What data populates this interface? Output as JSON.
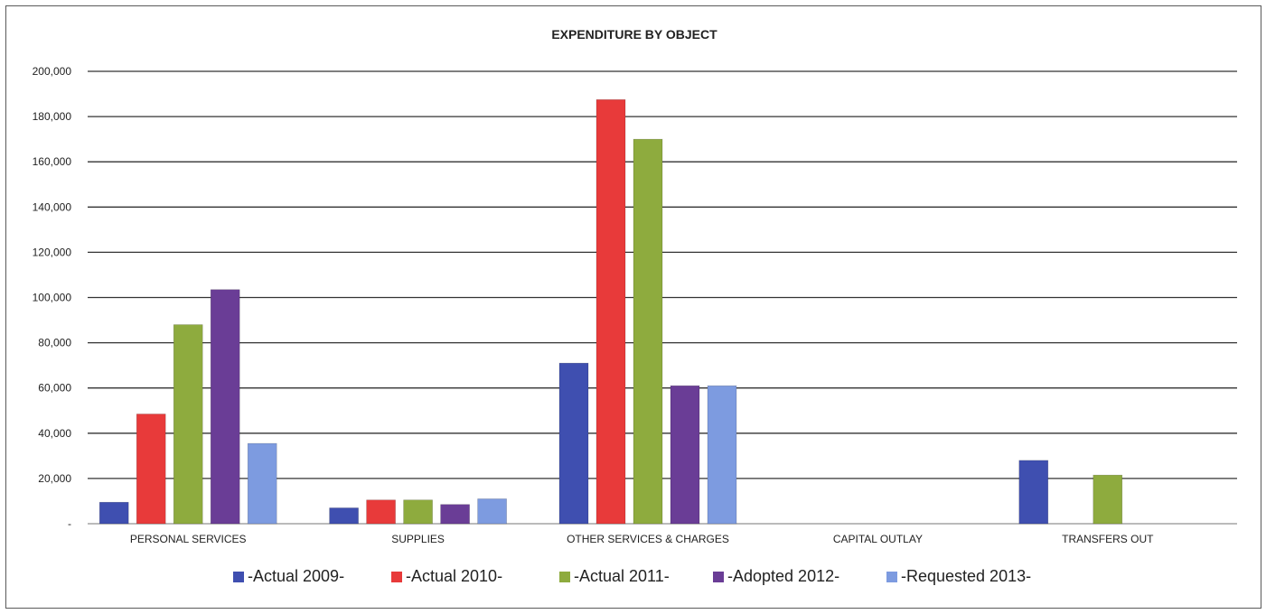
{
  "chart_data": {
    "type": "bar",
    "title": "EXPENDITURE BY OBJECT",
    "xlabel": "",
    "ylabel": "",
    "ylim": [
      0,
      200000
    ],
    "yticks": [
      {
        "value": 0,
        "label": "-"
      },
      {
        "value": 20000,
        "label": "20,000"
      },
      {
        "value": 40000,
        "label": "40,000"
      },
      {
        "value": 60000,
        "label": "60,000"
      },
      {
        "value": 80000,
        "label": "80,000"
      },
      {
        "value": 100000,
        "label": "100,000"
      },
      {
        "value": 120000,
        "label": "120,000"
      },
      {
        "value": 140000,
        "label": "140,000"
      },
      {
        "value": 160000,
        "label": "160,000"
      },
      {
        "value": 180000,
        "label": "180,000"
      },
      {
        "value": 200000,
        "label": "200,000"
      }
    ],
    "grid": true,
    "legend_position": "bottom",
    "categories": [
      "PERSONAL SERVICES",
      "SUPPLIES",
      "OTHER SERVICES & CHARGES",
      "CAPITAL OUTLAY",
      "TRANSFERS OUT"
    ],
    "series": [
      {
        "name": "-Actual 2009-",
        "color": "#3f4fb0",
        "values": [
          9500,
          7000,
          71000,
          0,
          28000
        ]
      },
      {
        "name": "-Actual 2010-",
        "color": "#e83a3a",
        "values": [
          48500,
          10500,
          187500,
          0,
          0
        ]
      },
      {
        "name": "-Actual 2011-",
        "color": "#8eab3e",
        "values": [
          88000,
          10500,
          170000,
          0,
          21500
        ]
      },
      {
        "name": "-Adopted 2012-",
        "color": "#6a3d96",
        "values": [
          103500,
          8500,
          61000,
          0,
          0
        ]
      },
      {
        "name": "-Requested 2013-",
        "color": "#7d9be0",
        "values": [
          35500,
          11000,
          61000,
          0,
          0
        ]
      }
    ]
  }
}
